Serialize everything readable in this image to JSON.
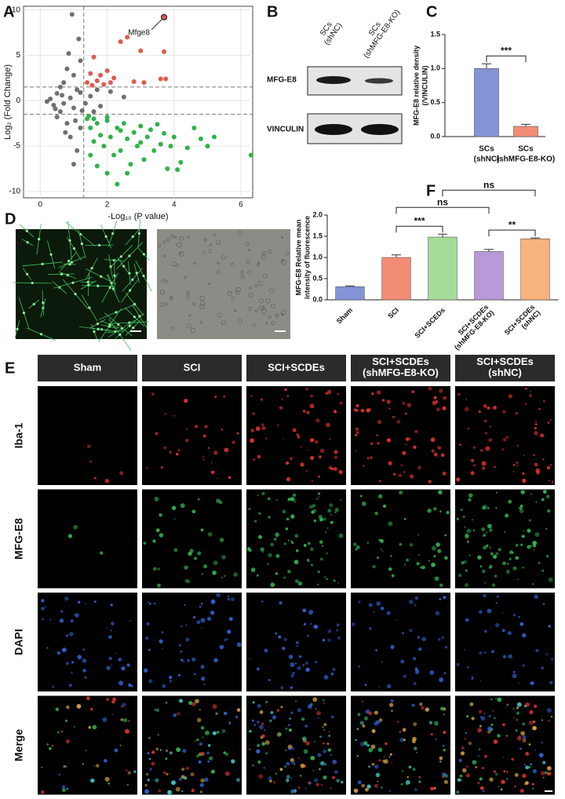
{
  "panels": {
    "A": "A",
    "B": "B",
    "C": "C",
    "D": "D",
    "E": "E",
    "F": "F"
  },
  "blot": {
    "lanes": [
      "SCs\n(shNC)",
      "SCs\n(shMFG-E8-KO)"
    ],
    "rows": [
      "MFG-E8",
      "VINCULIN"
    ]
  },
  "staining": {
    "columns": [
      "Sham",
      "SCI",
      "SCI+SCDEs",
      "SCI+SCDEs\n(shMFG-E8-KO)",
      "SCI+SCDEs\n(shNC)"
    ],
    "rows": [
      {
        "label": "Iba-1",
        "color": "#e03030"
      },
      {
        "label": "MFG-E8",
        "color": "#30b050"
      },
      {
        "label": "DAPI",
        "color": "#3060d0"
      },
      {
        "label": "Merge",
        "color": "#ffffff"
      }
    ]
  },
  "chart_data": [
    {
      "type": "scatter",
      "x_label": "-Log₁₀ (P value)",
      "y_label": "Log₂ (Fold Change)",
      "xlim": [
        -0.5,
        6.35
      ],
      "ylim": [
        -10.7,
        10.4
      ],
      "xticks": [
        0,
        2,
        4,
        6
      ],
      "yticks": [
        -10,
        -5,
        0,
        5,
        10
      ],
      "grid": true,
      "vlines": [
        1.3
      ],
      "hlines": [
        1.5,
        -1.5
      ],
      "annotation": {
        "text": "Mfge8",
        "x": 3.7,
        "y": 9.2
      },
      "series": [
        {
          "color": "#707070",
          "x": [
            0.4,
            0.5,
            0.6,
            0.7,
            0.8,
            0.9,
            1.0,
            1.1,
            1.2,
            0.3,
            0.5,
            0.7,
            0.8,
            0.9,
            1.0,
            1.1,
            1.2,
            0.6,
            0.95,
            1.15,
            1.0,
            1.25,
            1.5,
            1.8,
            2.1,
            1.6,
            2.5,
            0.2,
            0.45,
            1.05,
            0.85,
            1.2,
            0.75,
            0.65,
            1.35,
            1.7
          ],
          "values": [
            -0.5,
            0.8,
            -1.2,
            2,
            -2.5,
            0.3,
            -0.8,
            1.2,
            -3,
            0.2,
            -1.8,
            -0.3,
            3.5,
            -4,
            2.8,
            -5.5,
            0.9,
            1.5,
            9.5,
            6.8,
            -7,
            -1.1,
            0.5,
            -0.6,
            1.0,
            -1.2,
            0.4,
            -0.1,
            -0.9,
            -2.2,
            5.2,
            4.4,
            -3.5,
            0.6,
            -0.3,
            1.2
          ]
        },
        {
          "color": "#e05a4e",
          "x": [
            1.4,
            1.5,
            1.6,
            1.7,
            1.8,
            1.9,
            2.0,
            2.2,
            2.4,
            2.6,
            2.8,
            3.0,
            3.1,
            3.7,
            3.6,
            3.75,
            1.55,
            2.1,
            3.7
          ],
          "values": [
            2,
            3,
            4.8,
            2.2,
            2.8,
            1.8,
            3.3,
            2.5,
            6.5,
            7,
            2.1,
            5.5,
            2.0,
            5.4,
            2.4,
            2.4,
            1.7,
            2.0,
            9.2
          ]
        },
        {
          "color": "#2fb34a",
          "x": [
            1.4,
            1.5,
            1.6,
            1.7,
            1.8,
            1.9,
            2.0,
            2.1,
            2.2,
            2.3,
            2.4,
            2.5,
            2.6,
            2.7,
            2.8,
            2.9,
            3.0,
            3.1,
            3.2,
            3.3,
            3.4,
            3.5,
            3.6,
            3.7,
            3.8,
            3.9,
            4.0,
            4.2,
            4.4,
            4.6,
            4.8,
            5.0,
            5.2,
            6.3,
            1.5,
            1.7,
            2.0,
            2.3,
            2.6,
            1.45,
            1.6,
            2.0,
            2.4,
            3.0,
            4.1
          ],
          "values": [
            -2,
            -3,
            -4.5,
            -2.5,
            -3.8,
            -5,
            -2.2,
            -4,
            -6,
            -3,
            -5.5,
            -2.5,
            -4.2,
            -7,
            -3.5,
            -5,
            -2.8,
            -6.5,
            -4,
            -3.2,
            -5.5,
            -2.6,
            -4.8,
            -3.6,
            -7.5,
            -5,
            -4,
            -6.8,
            -5.2,
            -3,
            -4.2,
            -5,
            -4,
            -6,
            -6,
            -7.2,
            -8,
            -9.2,
            -8,
            -1.7,
            -2,
            -1.8,
            -3.3,
            -4.6,
            -7.6
          ]
        }
      ]
    },
    {
      "type": "bar",
      "y_label": "MFG-E8 relative density\n(/VINCULIN)",
      "categories": [
        "SCs\n(shNC)",
        "SCs\n(shMFG-E8-KO)"
      ],
      "values": [
        1.0,
        0.15
      ],
      "errors": [
        0.07,
        0.03
      ],
      "colors": [
        "#8494d6",
        "#f28c74"
      ],
      "ylim": [
        0,
        1.5
      ],
      "yticks": [
        {
          "value": 0,
          "label": "0.0"
        },
        {
          "value": 0.5,
          "label": "0.5"
        },
        {
          "value": 1.0,
          "label": "1.0"
        },
        {
          "value": 1.5,
          "label": "1.5"
        }
      ],
      "comparisons": [
        {
          "from": 0,
          "to": 1,
          "label": "***"
        }
      ]
    },
    {
      "type": "bar",
      "y_label": "MFG-E8 Relative mean\nintensity of fluorescence",
      "categories": [
        "Sham",
        "SCI",
        "SCI+SCEDs",
        "SCI+SCDEs\n(shMFG-E8-KO)",
        "SCI+SCDEs\n(shNC)"
      ],
      "values": [
        0.31,
        1.0,
        1.48,
        1.14,
        1.44
      ],
      "errors": [
        0.02,
        0.06,
        0.07,
        0.05,
        0.02
      ],
      "colors": [
        "#8494d6",
        "#f28c74",
        "#a6dc9a",
        "#b89ad6",
        "#f8b27c"
      ],
      "ylim": [
        0,
        2.0
      ],
      "yticks": [
        {
          "value": 0,
          "label": "0.0"
        },
        {
          "value": 0.5,
          "label": "0.5"
        },
        {
          "value": 1.0,
          "label": "1.0"
        },
        {
          "value": 1.5,
          "label": "1.5"
        },
        {
          "value": 2.0,
          "label": "2.0"
        }
      ],
      "comparisons": [
        {
          "from": 1,
          "to": 2,
          "label": "***"
        },
        {
          "from": 3,
          "to": 4,
          "label": "**"
        },
        {
          "from": 1,
          "to": 3,
          "label": "ns"
        },
        {
          "from": 2,
          "to": 4,
          "label": "ns"
        }
      ]
    }
  ]
}
